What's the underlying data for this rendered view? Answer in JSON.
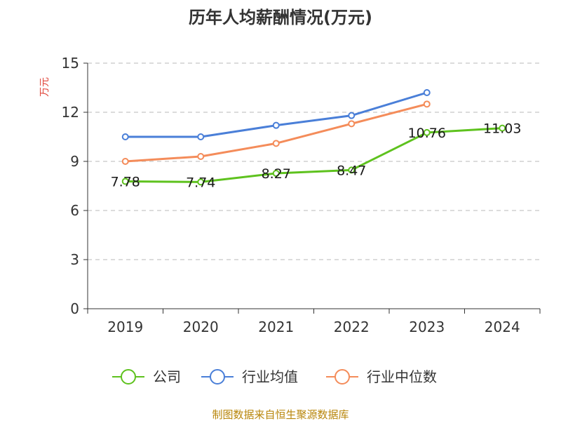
{
  "chart_data": {
    "type": "line",
    "title": "历年人均薪酬情况(万元)",
    "ylabel": "万元",
    "xlabel": "",
    "ylim": [
      0,
      15
    ],
    "yticks": [
      0,
      3,
      6,
      9,
      12,
      15
    ],
    "categories": [
      "2019",
      "2020",
      "2021",
      "2022",
      "2023",
      "2024"
    ],
    "grid": true,
    "legend_position": "bottom",
    "series": [
      {
        "name": "公司",
        "color": "#5ec21e",
        "values": [
          7.78,
          7.74,
          8.27,
          8.47,
          10.76,
          11.03
        ],
        "labels": [
          "7.78",
          "7.74",
          "8.27",
          "8.47",
          "10.76",
          "11.03"
        ]
      },
      {
        "name": "行业均值",
        "color": "#4a7fd8",
        "values": [
          10.5,
          10.5,
          11.2,
          11.8,
          13.2,
          null
        ]
      },
      {
        "name": "行业中位数",
        "color": "#f48c5a",
        "values": [
          9.0,
          9.3,
          10.1,
          11.3,
          12.5,
          null
        ]
      }
    ],
    "source": "制图数据来自恒生聚源数据库"
  }
}
